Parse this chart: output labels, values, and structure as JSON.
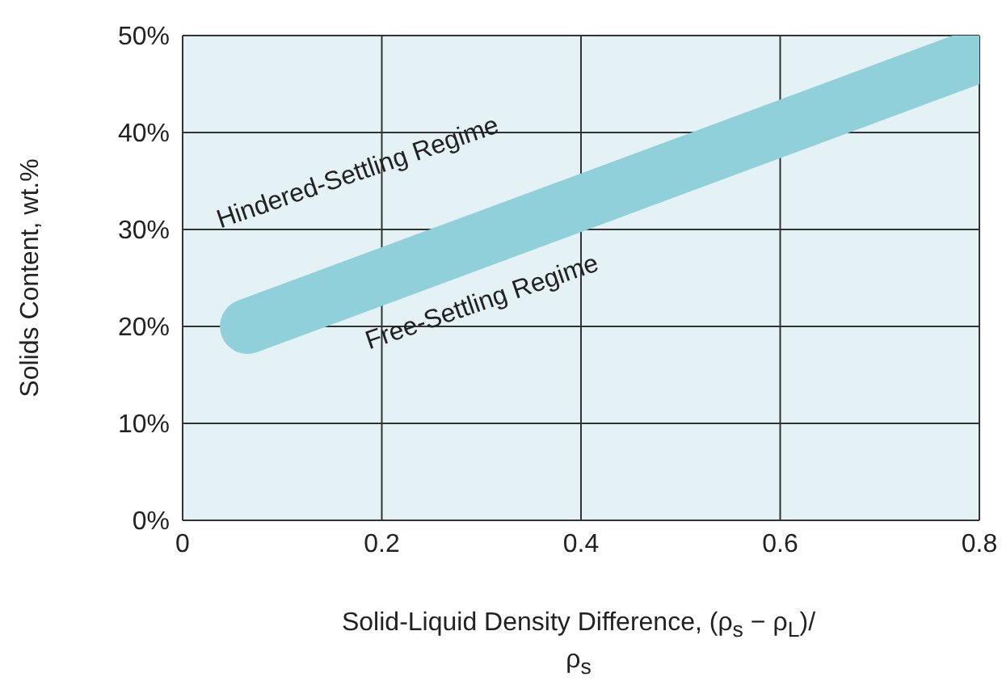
{
  "chart_data": {
    "type": "line",
    "xlabel": "Solid-Liquid Density Difference, (ρ$_{s}$ − ρ$_{L}$)/ρ$_{s}$",
    "ylabel": "Solids Content, wt.%",
    "x": [
      0.065,
      0.8
    ],
    "series": [
      {
        "color": "#8fd0da",
        "values": [
          20,
          48
        ]
      }
    ],
    "xlim": [
      0,
      0.8
    ],
    "xticks": [
      0,
      0.2,
      0.4,
      0.6,
      0.8
    ],
    "ylim": [
      0,
      50
    ],
    "yticks": [
      {
        "value": 0,
        "label": "0%"
      },
      {
        "value": 10,
        "label": "10%"
      },
      {
        "value": 20,
        "label": "20%"
      },
      {
        "value": 30,
        "label": "30%"
      },
      {
        "value": 40,
        "label": "40%"
      },
      {
        "value": 50,
        "label": "50%"
      }
    ],
    "grid": true,
    "marker": "none",
    "line_style": "solid",
    "annotations": [
      "Hindered-Settling Regime",
      "Free-Settling Regime"
    ]
  }
}
